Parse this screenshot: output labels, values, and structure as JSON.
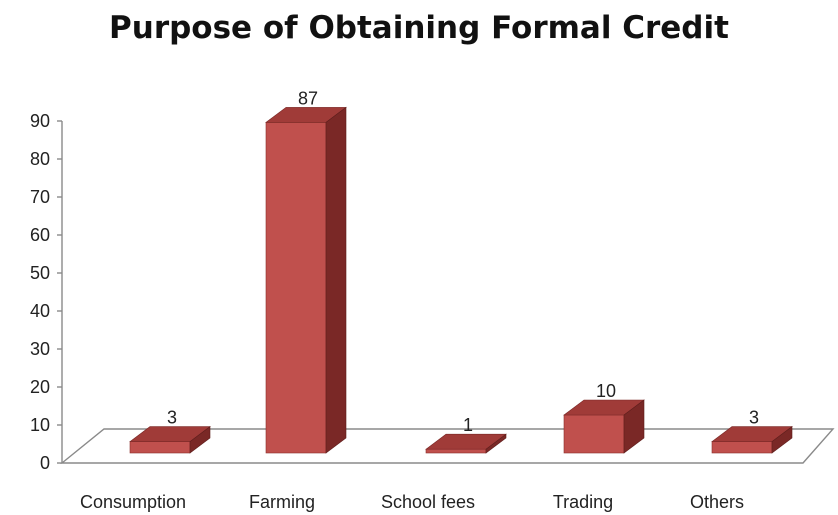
{
  "chart_data": {
    "type": "bar",
    "title": "Purpose of Obtaining Formal Credit",
    "categories": [
      "Consumption",
      "Farming",
      "School fees",
      "Trading",
      "Others"
    ],
    "values": [
      3,
      87,
      1,
      10,
      3
    ],
    "data_labels": [
      "3",
      "87",
      "1",
      "10",
      "3"
    ],
    "yticks": [
      "0",
      "10",
      "20",
      "30",
      "40",
      "50",
      "60",
      "70",
      "80",
      "90"
    ],
    "ylim": [
      0,
      90
    ],
    "xlabel": "",
    "ylabel": "",
    "grid": false,
    "legend": "none",
    "style": "3d-column",
    "colors": {
      "bar_front": "#c0504d",
      "bar_top": "#a03b38",
      "bar_side": "#7a2826",
      "axis": "#8a8a8a"
    }
  }
}
